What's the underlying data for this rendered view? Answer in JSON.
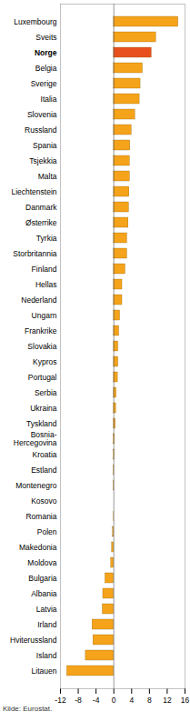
{
  "chart_data": {
    "type": "bar",
    "orientation": "horizontal",
    "categories": [
      "Luxembourg",
      "Sveits",
      "Norge",
      "Belgia",
      "Sverige",
      "Italia",
      "Slovenia",
      "Russland",
      "Spania",
      "Tsjekkia",
      "Malta",
      "Liechtenstein",
      "Danmark",
      "Østerrike",
      "Tyrkia",
      "Storbritannia",
      "Finland",
      "Hellas",
      "Nederland",
      "Ungarn",
      "Frankrike",
      "Slovakia",
      "Kypros",
      "Portugal",
      "Serbia",
      "Ukraina",
      "Tyskland",
      "Bosnia-Hercegovina",
      "Kroatia",
      "Estland",
      "Montenegro",
      "Kosovo",
      "Romania",
      "Polen",
      "Makedonia",
      "Moldova",
      "Bulgaria",
      "Albania",
      "Latvia",
      "Irland",
      "Hviterussland",
      "Island",
      "Litauen"
    ],
    "values": [
      14.5,
      9.5,
      8.5,
      6.5,
      6.0,
      5.8,
      4.8,
      4.0,
      3.7,
      3.6,
      3.6,
      3.5,
      3.4,
      3.3,
      3.0,
      3.0,
      2.6,
      1.9,
      1.9,
      1.4,
      1.2,
      1.0,
      1.0,
      0.9,
      0.6,
      0.5,
      0.4,
      0.2,
      0.1,
      0.05,
      0.05,
      0,
      -0.05,
      -0.2,
      -0.4,
      -0.6,
      -1.9,
      -2.4,
      -2.5,
      -4.8,
      -4.6,
      -6.3,
      -10.5
    ],
    "colors": [
      "#f5a31a",
      "#f5a31a",
      "#e8501e",
      "#f5a31a",
      "#f5a31a",
      "#f5a31a",
      "#f5a31a",
      "#f5a31a",
      "#f5a31a",
      "#f5a31a",
      "#f5a31a",
      "#f5a31a",
      "#f5a31a",
      "#f5a31a",
      "#f5a31a",
      "#f5a31a",
      "#f5a31a",
      "#f5a31a",
      "#f5a31a",
      "#f5a31a",
      "#f5a31a",
      "#f5a31a",
      "#f5a31a",
      "#f5a31a",
      "#f5a31a",
      "#f5a31a",
      "#f5a31a",
      "#f5a31a",
      "#f5a31a",
      "#f5a31a",
      "#f5a31a",
      "#f5a31a",
      "#f5a31a",
      "#f5a31a",
      "#f5a31a",
      "#f5a31a",
      "#f5a31a",
      "#f5a31a",
      "#f5a31a",
      "#f5a31a",
      "#f5a31a",
      "#f5a31a",
      "#f5a31a"
    ],
    "xlim": [
      -12,
      16
    ],
    "xticks": [
      -12,
      -8,
      -4,
      0,
      4,
      8,
      12,
      16
    ],
    "grid": false,
    "caption": "Kilde: Eurostat."
  }
}
